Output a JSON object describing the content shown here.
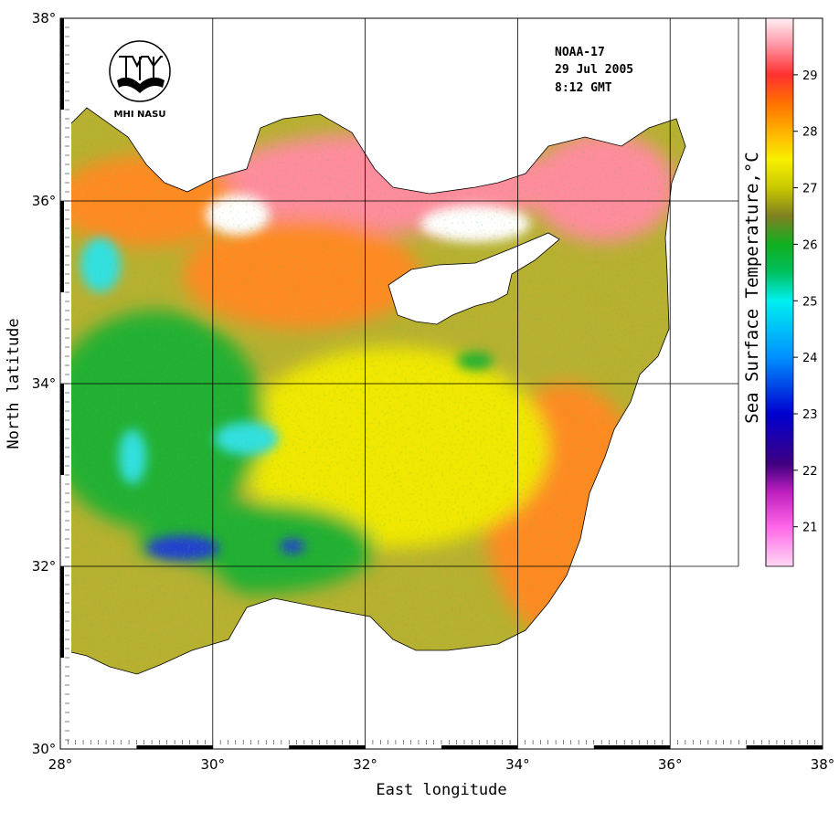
{
  "title_block": {
    "satellite": "NOAA-17",
    "date": "29 Jul 2005",
    "time": "8:12 GMT"
  },
  "logo": {
    "text": "MHI NASU"
  },
  "axes": {
    "xlabel": "East longitude",
    "ylabel": "North latitude",
    "x_ticks": [
      "28°",
      "30°",
      "32°",
      "34°",
      "36°",
      "38°"
    ],
    "y_ticks": [
      "30°",
      "32°",
      "34°",
      "36°",
      "38°"
    ],
    "xlim": [
      28,
      38
    ],
    "ylim": [
      30,
      38
    ]
  },
  "colorbar": {
    "title": "Sea Surface Temperature,°C",
    "ticks": [
      "21",
      "22",
      "23",
      "24",
      "25",
      "26",
      "27",
      "28",
      "29"
    ],
    "range": [
      20.3,
      30
    ],
    "stops": [
      {
        "v": 20.3,
        "c": "#ffd8f4"
      },
      {
        "v": 21,
        "c": "#ff66e8"
      },
      {
        "v": 21.6,
        "c": "#c020c0"
      },
      {
        "v": 22.1,
        "c": "#400080"
      },
      {
        "v": 23,
        "c": "#0000d0"
      },
      {
        "v": 24,
        "c": "#0090ff"
      },
      {
        "v": 25,
        "c": "#00f0f0"
      },
      {
        "v": 25.5,
        "c": "#00c060"
      },
      {
        "v": 26,
        "c": "#10b020"
      },
      {
        "v": 26.5,
        "c": "#808020"
      },
      {
        "v": 27,
        "c": "#c8c800"
      },
      {
        "v": 27.5,
        "c": "#f8f000"
      },
      {
        "v": 28,
        "c": "#ffb000"
      },
      {
        "v": 28.5,
        "c": "#ff7000"
      },
      {
        "v": 29,
        "c": "#ff3030"
      },
      {
        "v": 29.5,
        "c": "#ff90a0"
      },
      {
        "v": 30,
        "c": "#fff0f4"
      }
    ]
  },
  "palette": {
    "warm_pink": "#ff8c9c",
    "orange": "#ff8a20",
    "yellow": "#f0e800",
    "olive": "#b8b030",
    "green": "#20b030",
    "cyan": "#30e0e0",
    "blue": "#2040d0",
    "land": "#ffffff"
  }
}
